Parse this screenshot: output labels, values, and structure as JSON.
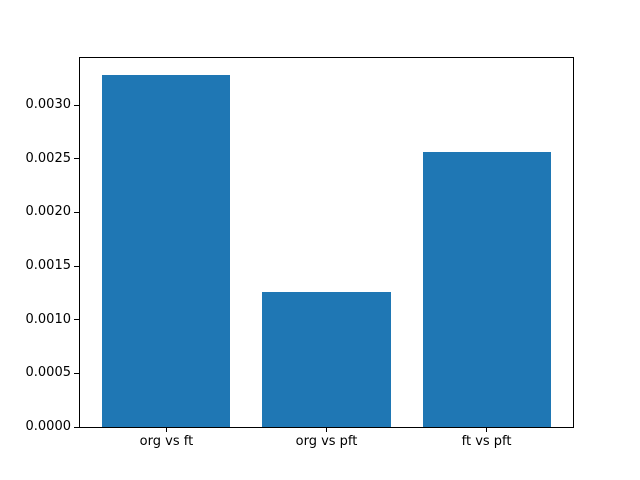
{
  "figure": {
    "background": "#ffffff",
    "frame_color": "#000000",
    "text_color": "#000000"
  },
  "chart_data": {
    "type": "bar",
    "title": "",
    "xlabel": "",
    "ylabel": "",
    "categories": [
      "org vs ft",
      "org vs pft",
      "ft vs pft"
    ],
    "values": [
      0.00328,
      0.00126,
      0.00256
    ],
    "bar_color": "#1f77b4",
    "bar_width_fraction": 0.8,
    "xlim": [
      -0.54,
      2.54
    ],
    "ylim": [
      0,
      0.00344
    ],
    "yticks": [
      0.0,
      0.0005,
      0.001,
      0.0015,
      0.002,
      0.0025,
      0.003
    ],
    "ytick_labels": [
      "0.0000",
      "0.0005",
      "0.0010",
      "0.0015",
      "0.0020",
      "0.0025",
      "0.0030"
    ],
    "grid": false,
    "legend": null
  }
}
